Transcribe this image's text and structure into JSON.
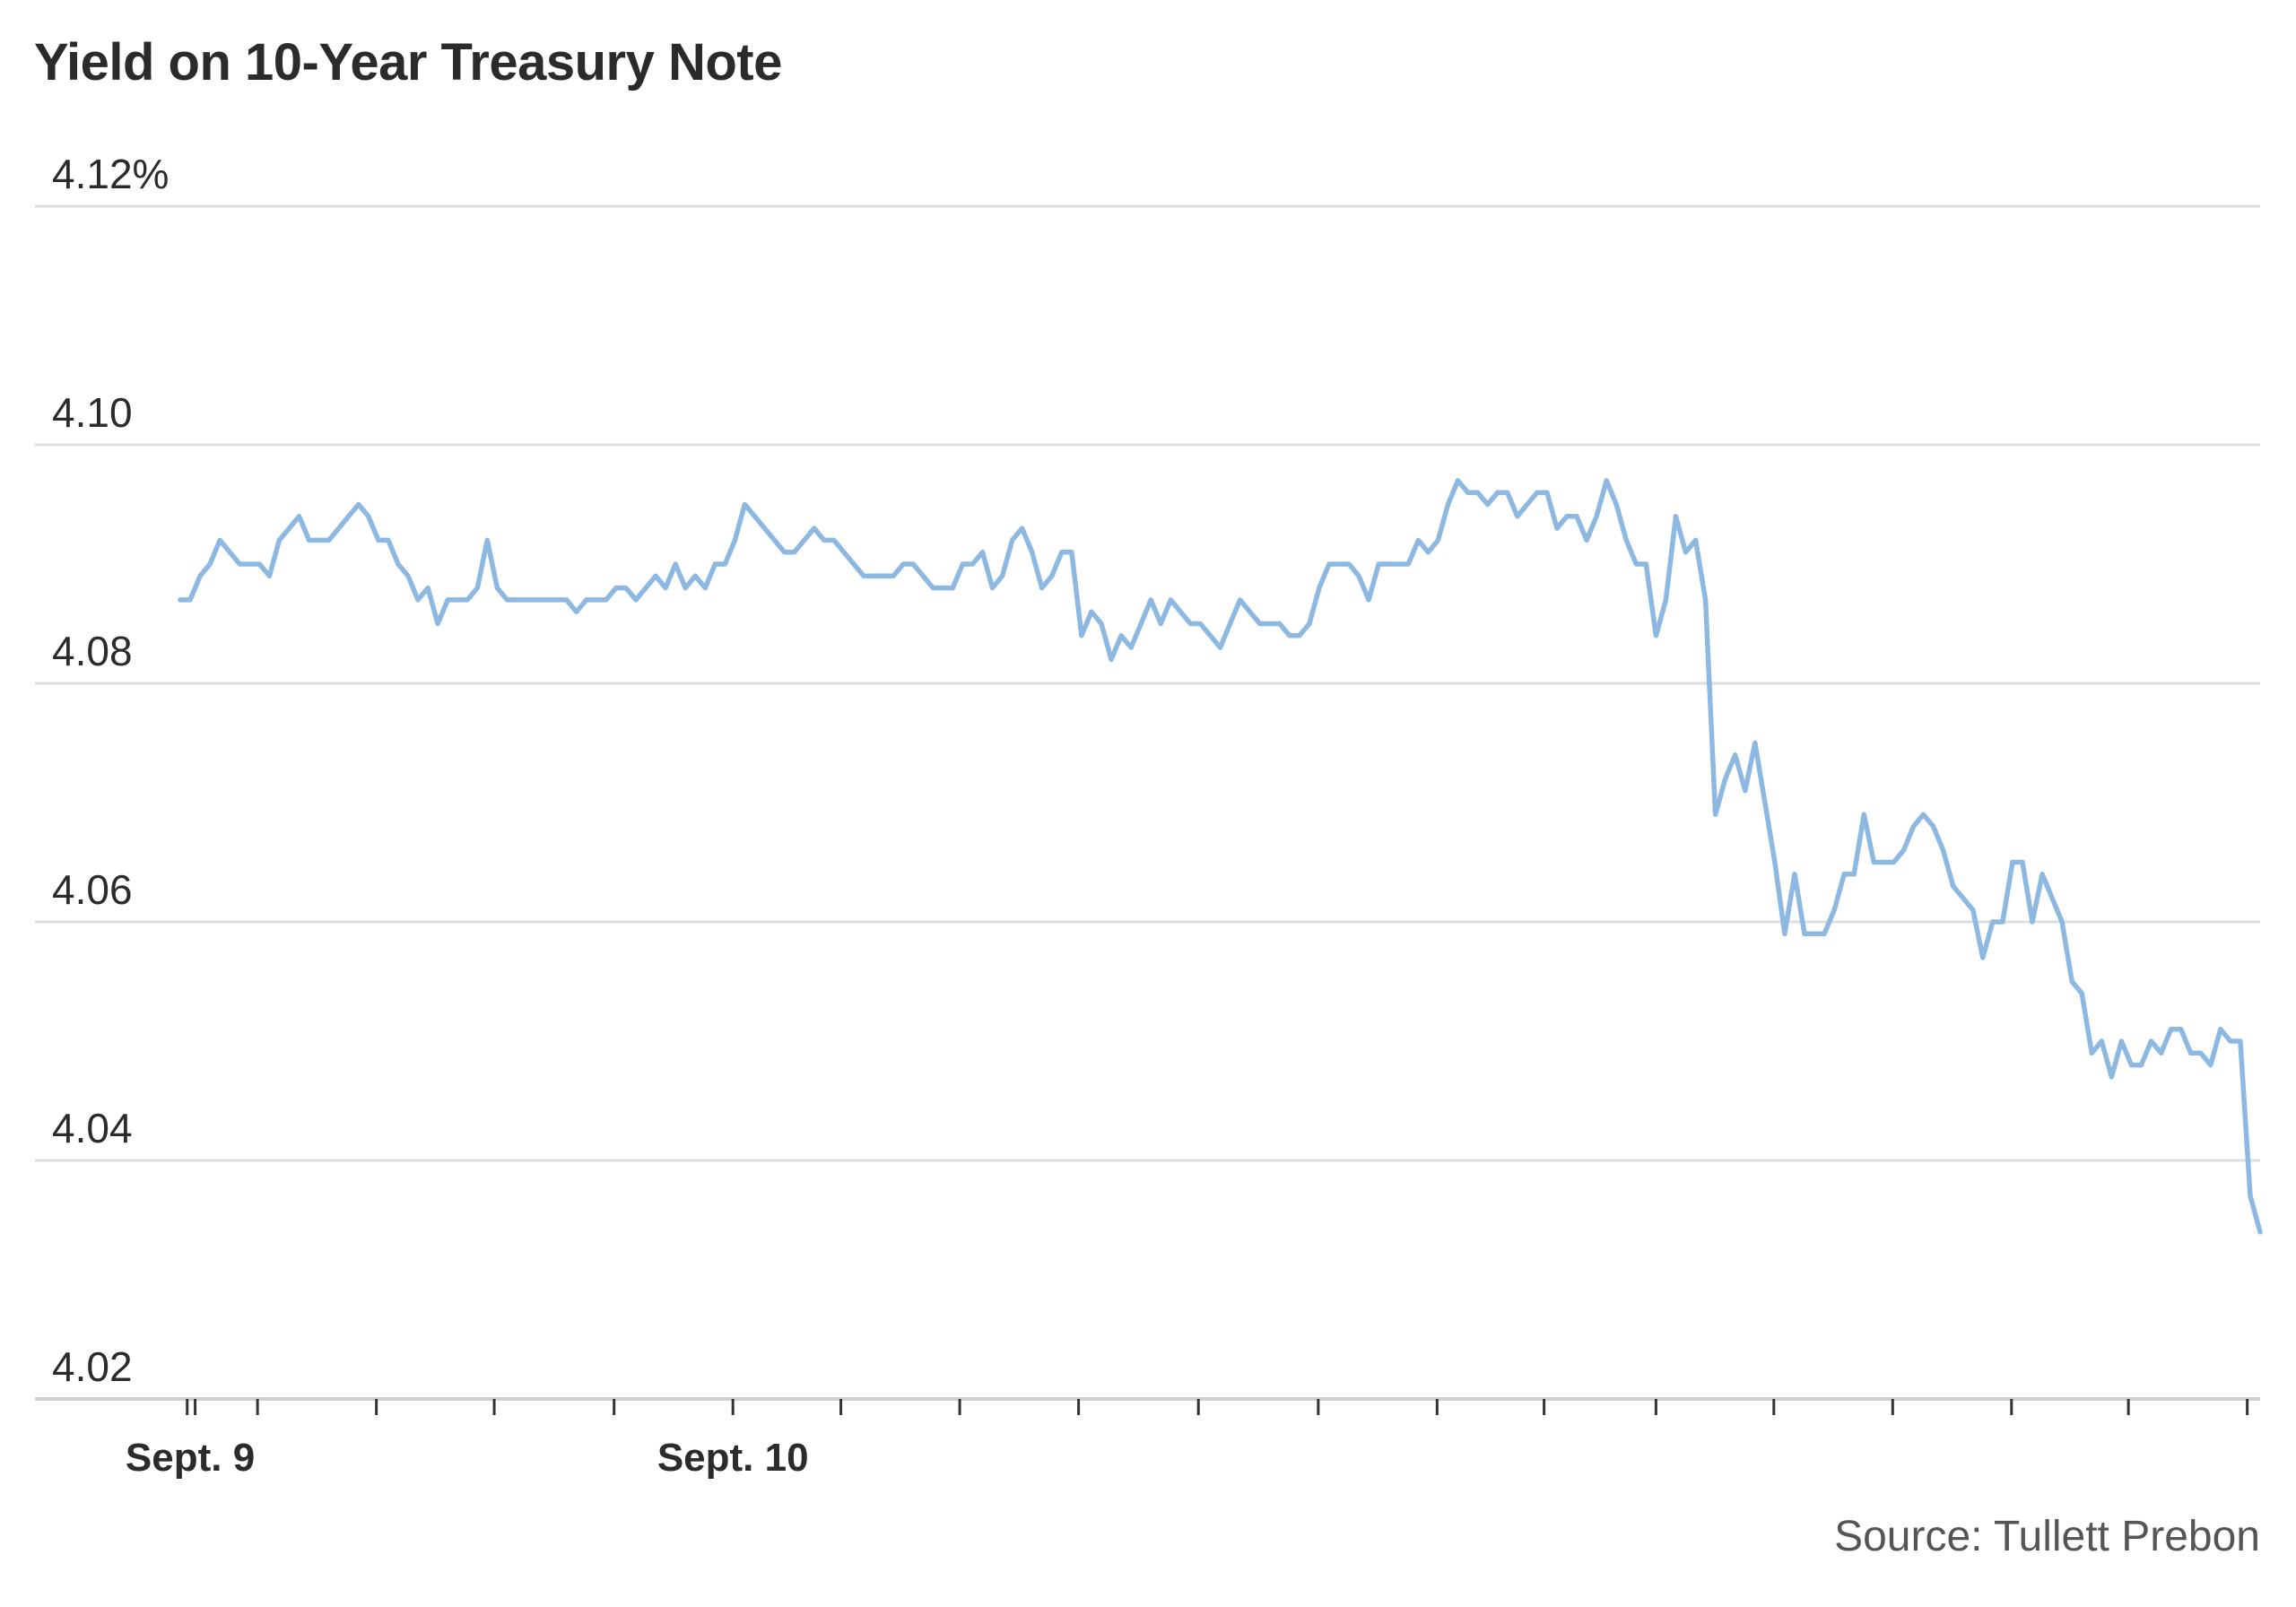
{
  "chart_data": {
    "type": "line",
    "title": "Yield on 10-Year Treasury Note",
    "source": "Source: Tullett Prebon",
    "xlabel": "",
    "ylabel": "",
    "ylim": [
      4.02,
      4.12
    ],
    "y_ticks": [
      {
        "value": 4.12,
        "label": "4.12%"
      },
      {
        "value": 4.1,
        "label": "4.10"
      },
      {
        "value": 4.08,
        "label": "4.08"
      },
      {
        "value": 4.06,
        "label": "4.06"
      },
      {
        "value": 4.04,
        "label": "4.04"
      },
      {
        "value": 4.02,
        "label": "4.02"
      }
    ],
    "x_tick_marks": [
      0.7,
      1.5,
      7.8,
      19.8,
      31.7,
      43.8,
      55.8,
      66.7,
      78.7,
      90.7,
      102.8,
      114.9,
      126.9,
      137.7,
      149,
      160.9,
      172.9,
      184.9,
      196.7,
      208.7
    ],
    "x_labels": [
      {
        "x": 1,
        "label": "Sept. 9"
      },
      {
        "x": 55.8,
        "label": "Sept. 10"
      }
    ],
    "grid": true,
    "line_color": "#8db8e2",
    "series": [
      {
        "values": [
          4.087,
          4.087,
          4.089,
          4.09,
          4.092,
          4.091,
          4.09,
          4.09,
          4.09,
          4.089,
          4.092,
          4.093,
          4.094,
          4.092,
          4.092,
          4.092,
          4.093,
          4.094,
          4.095,
          4.094,
          4.092,
          4.092,
          4.09,
          4.089,
          4.087,
          4.088,
          4.085,
          4.087,
          4.087,
          4.087,
          4.088,
          4.092,
          4.088,
          4.087,
          4.087,
          4.087,
          4.087,
          4.087,
          4.087,
          4.087,
          4.086,
          4.087,
          4.087,
          4.087,
          4.088,
          4.088,
          4.087,
          4.088,
          4.089,
          4.088,
          4.09,
          4.088,
          4.089,
          4.088,
          4.09,
          4.09,
          4.092,
          4.095,
          4.094,
          4.093,
          4.092,
          4.091,
          4.091,
          4.092,
          4.093,
          4.092,
          4.092,
          4.091,
          4.09,
          4.089,
          4.089,
          4.089,
          4.089,
          4.09,
          4.09,
          4.089,
          4.088,
          4.088,
          4.088,
          4.09,
          4.09,
          4.091,
          4.088,
          4.089,
          4.092,
          4.093,
          4.091,
          4.088,
          4.089,
          4.091,
          4.091,
          4.084,
          4.086,
          4.085,
          4.082,
          4.084,
          4.083,
          4.085,
          4.087,
          4.085,
          4.087,
          4.086,
          4.085,
          4.085,
          4.084,
          4.083,
          4.085,
          4.087,
          4.086,
          4.085,
          4.085,
          4.085,
          4.084,
          4.084,
          4.085,
          4.088,
          4.09,
          4.09,
          4.09,
          4.089,
          4.087,
          4.09,
          4.09,
          4.09,
          4.09,
          4.092,
          4.091,
          4.092,
          4.095,
          4.097,
          4.096,
          4.096,
          4.095,
          4.096,
          4.096,
          4.094,
          4.095,
          4.096,
          4.096,
          4.093,
          4.094,
          4.094,
          4.092,
          4.094,
          4.097,
          4.095,
          4.092,
          4.09,
          4.09,
          4.084,
          4.087,
          4.094,
          4.091,
          4.092,
          4.087,
          4.069,
          4.072,
          4.074,
          4.071,
          4.075,
          4.07,
          4.065,
          4.059,
          4.064,
          4.059,
          4.059,
          4.059,
          4.061,
          4.064,
          4.064,
          4.069,
          4.065,
          4.065,
          4.065,
          4.066,
          4.068,
          4.069,
          4.068,
          4.066,
          4.063,
          4.062,
          4.061,
          4.057,
          4.06,
          4.06,
          4.065,
          4.065,
          4.06,
          4.064,
          4.062,
          4.06,
          4.055,
          4.054,
          4.049,
          4.05,
          4.047,
          4.05,
          4.048,
          4.048,
          4.05,
          4.049,
          4.051,
          4.051,
          4.049,
          4.049,
          4.048,
          4.051,
          4.05,
          4.05,
          4.037,
          4.034
        ]
      }
    ]
  }
}
